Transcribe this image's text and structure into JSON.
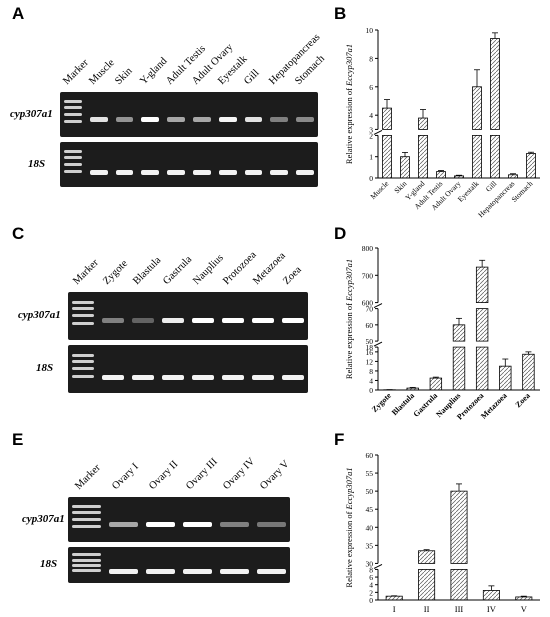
{
  "panels": {
    "A": {
      "letter": "A",
      "lanes": [
        "Marker",
        "Muscle",
        "Skin",
        "Y-gland",
        "Adult Testis",
        "Adult Ovary",
        "Eyestalk",
        "Gill",
        "Hepatopancreas",
        "Stomach"
      ],
      "row1": "cyp307a1",
      "row2": "18S",
      "band_intensity": [
        0.85,
        0.45,
        1.0,
        0.55,
        0.55,
        0.95,
        0.85,
        0.35,
        0.4
      ]
    },
    "C": {
      "letter": "C",
      "lanes": [
        "Marker",
        "Zygote",
        "Blastula",
        "Gastrula",
        "Nauplius",
        "Protozoea",
        "Metazoea",
        "Zoea"
      ],
      "row1": "cyp307a1",
      "row2": "18S",
      "band_intensity": [
        0.35,
        0.2,
        0.9,
        1.0,
        1.0,
        1.0,
        1.0
      ]
    },
    "E": {
      "letter": "E",
      "lanes": [
        "Marker",
        "Ovary  I",
        "Ovary II",
        "Ovary III",
        "Ovary IV",
        "Ovary V"
      ],
      "row1": "cyp307a1",
      "row2": "18S",
      "band_intensity": [
        0.55,
        1.0,
        1.0,
        0.35,
        0.3
      ]
    }
  },
  "chart_data": [
    {
      "panel": "B",
      "type": "bar",
      "ylabel_prefix": "Relative expression of ",
      "ylabel_gene": "Eccyp307a1",
      "categories": [
        "Muscle",
        "Skin",
        "Y-gland",
        "Adult Testis",
        "Adult Ovary",
        "Eyestalk",
        "Gill",
        "Hepatopancreas",
        "Stomach"
      ],
      "values": [
        4.5,
        1.0,
        3.8,
        0.3,
        0.1,
        6.0,
        9.4,
        0.15,
        1.15
      ],
      "errors": [
        0.6,
        0.2,
        0.6,
        0.05,
        0.03,
        1.2,
        0.4,
        0.05,
        0.06
      ],
      "segments": [
        {
          "range": [
            0,
            2
          ],
          "ticks": [
            0,
            1,
            2
          ]
        },
        {
          "range": [
            3,
            10
          ],
          "ticks": [
            3,
            4,
            6,
            8,
            10
          ]
        }
      ]
    },
    {
      "panel": "D",
      "type": "bar",
      "ylabel_prefix": "Relative expression of ",
      "ylabel_gene": "Eccyp307a1",
      "categories": [
        "Zygote",
        "Blastula",
        "Gastrula",
        "Nauplius",
        "Protozoea",
        "Metazoea",
        "Zoea"
      ],
      "values": [
        0.1,
        0.8,
        5.0,
        60,
        730,
        10,
        15
      ],
      "errors": [
        0.05,
        0.3,
        0.4,
        4,
        25,
        3,
        1
      ],
      "segments": [
        {
          "range": [
            0,
            18
          ],
          "ticks": [
            0,
            4,
            8,
            12,
            16,
            18
          ]
        },
        {
          "range": [
            50,
            70
          ],
          "ticks": [
            50,
            60,
            70
          ]
        },
        {
          "range": [
            600,
            800
          ],
          "ticks": [
            600,
            700,
            800
          ]
        }
      ]
    },
    {
      "panel": "F",
      "type": "bar",
      "ylabel_prefix": "Relative expression of ",
      "ylabel_gene": "Eccyp307a1",
      "categories": [
        "I",
        "II",
        "III",
        "IV",
        "V"
      ],
      "values": [
        1.0,
        33.5,
        50.0,
        2.5,
        0.8
      ],
      "errors": [
        0.1,
        0.3,
        2.0,
        1.2,
        0.2
      ],
      "segments": [
        {
          "range": [
            0,
            8
          ],
          "ticks": [
            0,
            2,
            4,
            6,
            8
          ]
        },
        {
          "range": [
            30,
            60
          ],
          "ticks": [
            30,
            35,
            40,
            45,
            50,
            55,
            60
          ]
        }
      ]
    }
  ]
}
